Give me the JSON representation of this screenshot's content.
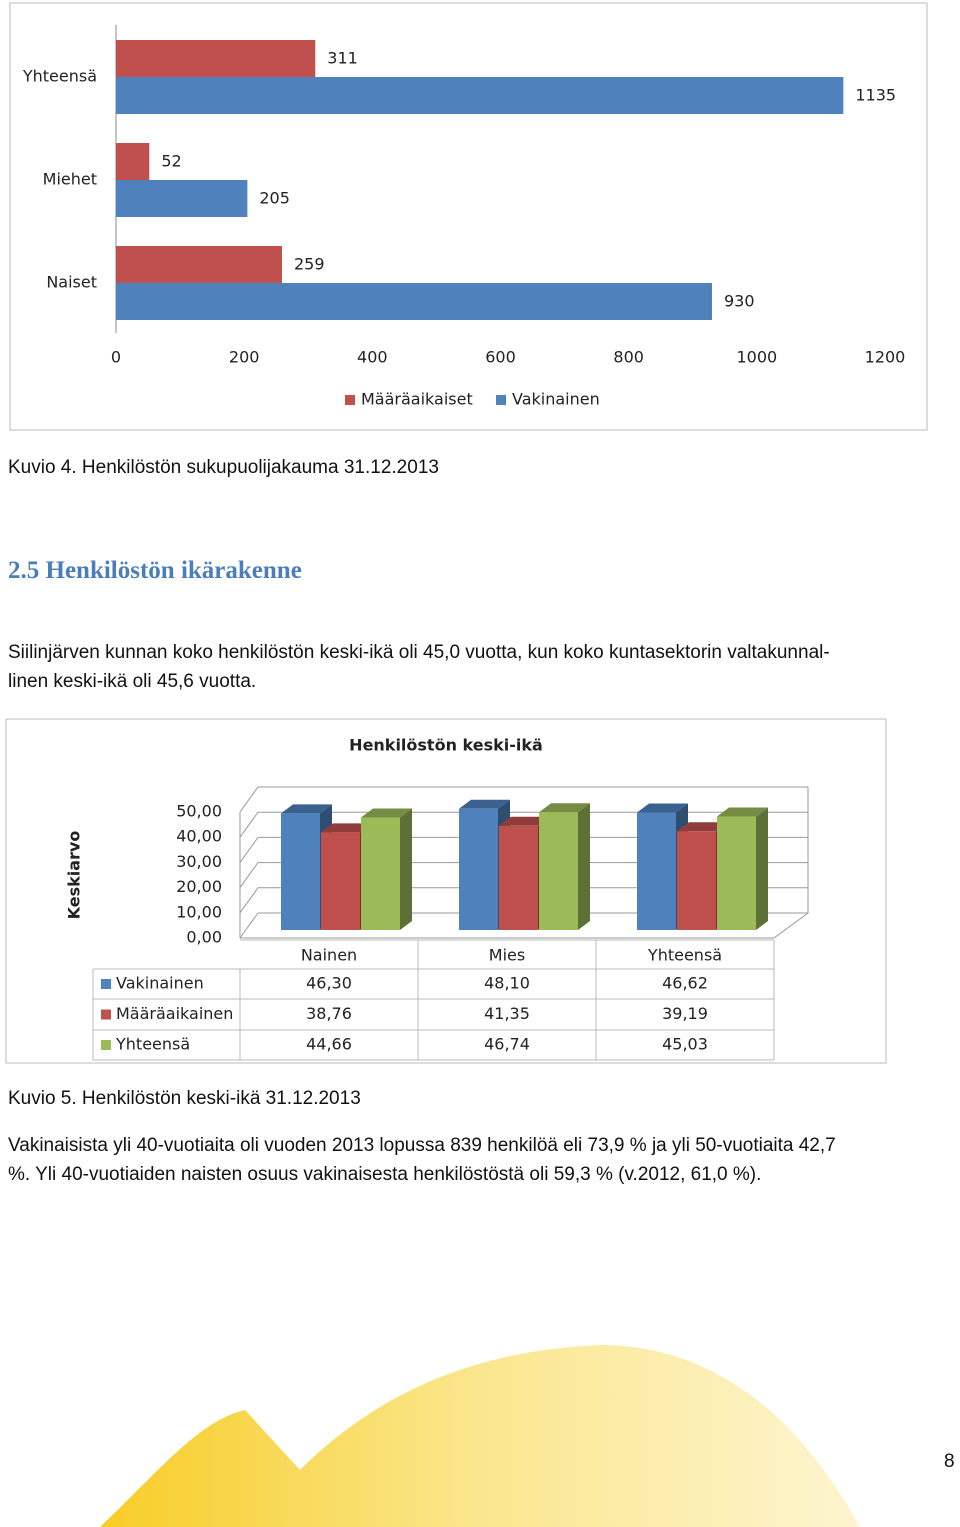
{
  "chart_data": [
    {
      "type": "hbar",
      "categories": [
        "Yhteensä",
        "Miehet",
        "Naiset"
      ],
      "series": [
        {
          "name": "Määräaikaiset",
          "color": "#c0504d",
          "values": [
            311,
            52,
            259
          ]
        },
        {
          "name": "Vakinainen",
          "color": "#4f81bd",
          "values": [
            1135,
            205,
            930
          ]
        }
      ],
      "xlim": [
        0,
        1200
      ],
      "xticks": [
        0,
        200,
        400,
        600,
        800,
        1000,
        1200
      ],
      "legend": "bottom"
    },
    {
      "type": "bar3d",
      "title": "Henkilöstön keski-ikä",
      "y_label": "Keskiarvo",
      "categories": [
        "Nainen",
        "Mies",
        "Yhteensä"
      ],
      "series": [
        {
          "name": "Vakinainen",
          "color": "#4f81bd",
          "values": [
            46.3,
            48.1,
            46.62
          ],
          "value_labels": [
            "46,30",
            "48,10",
            "46,62"
          ]
        },
        {
          "name": "Määräaikainen",
          "color": "#c0504d",
          "values": [
            38.76,
            41.35,
            39.19
          ],
          "value_labels": [
            "38,76",
            "41,35",
            "39,19"
          ]
        },
        {
          "name": "Yhteensä",
          "color": "#9bbb59",
          "values": [
            44.66,
            46.74,
            45.03
          ],
          "value_labels": [
            "44,66",
            "46,74",
            "45,03"
          ]
        }
      ],
      "ylim": [
        0,
        50
      ],
      "yticks": [
        {
          "value": 0,
          "label": "0,00"
        },
        {
          "value": 10,
          "label": "10,00"
        },
        {
          "value": 20,
          "label": "20,00"
        },
        {
          "value": 30,
          "label": "30,00"
        },
        {
          "value": 40,
          "label": "40,00"
        },
        {
          "value": 50,
          "label": "50,00"
        }
      ],
      "legend": "data-table"
    }
  ],
  "document": {
    "caption_1": "Kuvio 4. Henkilöstön sukupuolijakauma 31.12.2013",
    "heading": "2.5 Henkilöstön ikärakenne",
    "paragraph_1": [
      "Siilinjärven kunnan koko henkilöstön keski-ikä oli 45,0 vuotta, kun koko kuntasektorin valtakunnal-",
      "linen keski-ikä oli 45,6 vuotta."
    ],
    "caption_2": "Kuvio 5. Henkilöstön keski-ikä 31.12.2013",
    "paragraph_2": [
      "Vakinaisista yli 40-vuotiaita oli vuoden 2013 lopussa 839 henkilöä eli 73,9 % ja yli 50-vuotiaita 42,7",
      "%.  Yli 40-vuotiaiden naisten osuus vakinaisesta henkilöstöstä oli 59,3 % (v.2012, 61,0 %)."
    ],
    "page_number": "8"
  }
}
